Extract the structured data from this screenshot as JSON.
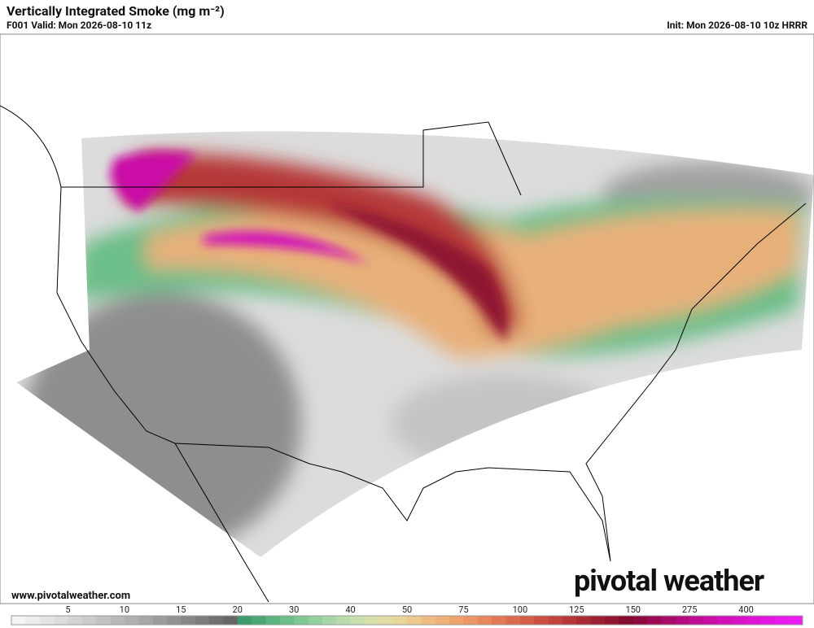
{
  "header": {
    "title": "Vertically Integrated Smoke (mg m⁻²)",
    "valid": "F001 Valid: Mon 2026-08-10 11z",
    "init": "Init: Mon 2026-08-10 10z HRRR"
  },
  "footer": {
    "website": "www.pivotalweather.com",
    "logo": "pivotal weather"
  },
  "colorbar": {
    "labels": [
      5,
      10,
      15,
      20,
      30,
      40,
      50,
      75,
      100,
      125,
      150,
      275,
      400
    ],
    "colors": [
      "#f4f4f4",
      "#ececec",
      "#e4e4e4",
      "#dcdcdc",
      "#d3d3d3",
      "#cbcbcb",
      "#c2c2c2",
      "#b9b9b9",
      "#b0b0b0",
      "#a6a6a6",
      "#9c9c9c",
      "#929292",
      "#878787",
      "#7c7c7c",
      "#717171",
      "#666666",
      "#3f9a6c",
      "#4ba774",
      "#5ab47e",
      "#6cbe88",
      "#7fc793",
      "#92cf9d",
      "#a6d6a6",
      "#b8dcac",
      "#c8dfae",
      "#d6dfaa",
      "#e1dca3",
      "#e8d59a",
      "#ecc98e",
      "#efbd82",
      "#f0b077",
      "#eea36d",
      "#eb9564",
      "#e7875c",
      "#e27954",
      "#dc6b4d",
      "#d45d47",
      "#cb5042",
      "#c0433d",
      "#b53739",
      "#a92b35",
      "#9c2032",
      "#8f1530",
      "#820b2e",
      "#8e0a3e",
      "#9a0a52",
      "#a70a67",
      "#b30b7d",
      "#bf0c93",
      "#c90ea6",
      "#d110b8",
      "#d812c8",
      "#de14d5",
      "#e316e0",
      "#e819ea",
      "#ec1cf2"
    ]
  }
}
